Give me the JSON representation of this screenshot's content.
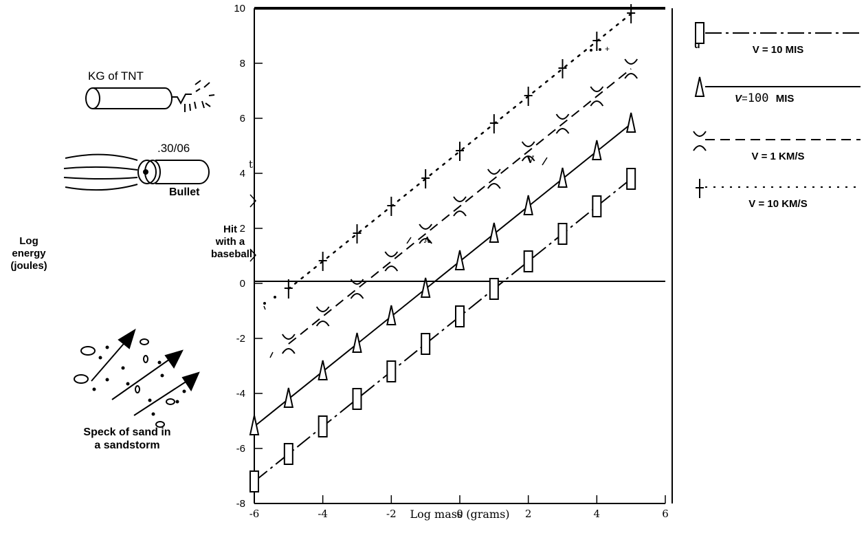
{
  "chart_data": {
    "type": "line",
    "xlabel": "Log mass (grams)",
    "ylabel": "Log energy (joules)",
    "xlim": [
      -6,
      6
    ],
    "ylim": [
      -8,
      10
    ],
    "x_ticks": [
      -6,
      -4,
      -2,
      0,
      2,
      4,
      6
    ],
    "y_ticks": [
      10,
      8,
      6,
      4,
      2,
      0,
      -2,
      -4,
      -6,
      -8
    ],
    "grid": false,
    "legend_position": "right",
    "series": [
      {
        "name": "V = 10 MIS",
        "marker": "square",
        "line": "dash-dot",
        "x": [
          -6,
          -5,
          -4,
          -3,
          -2,
          -1,
          0,
          1,
          2,
          3,
          4,
          5
        ],
        "y": [
          -7.2,
          -6.2,
          -5.2,
          -4.2,
          -3.2,
          -2.2,
          -1.2,
          -0.2,
          0.8,
          1.8,
          2.8,
          3.8
        ]
      },
      {
        "name": "V = 100 MIS",
        "marker": "triangle",
        "line": "solid",
        "x": [
          -6,
          -5,
          -4,
          -3,
          -2,
          -1,
          0,
          1,
          2,
          3,
          4,
          5
        ],
        "y": [
          -5.2,
          -4.2,
          -3.2,
          -2.2,
          -1.2,
          -0.2,
          0.8,
          1.8,
          2.8,
          3.8,
          4.8,
          5.8
        ]
      },
      {
        "name": "V = 1 KM/S",
        "marker": "x",
        "line": "dashed",
        "x": [
          -5,
          -4,
          -3,
          -2,
          -1,
          0,
          1,
          2,
          3,
          4,
          5
        ],
        "y": [
          -2.2,
          -1.2,
          -0.2,
          0.8,
          1.8,
          2.8,
          3.8,
          4.8,
          5.8,
          6.8,
          7.8
        ]
      },
      {
        "name": "V = 10 KM/S",
        "marker": "plus",
        "line": "dotted",
        "x": [
          -5,
          -4,
          -3,
          -2,
          -1,
          0,
          1,
          2,
          3,
          4,
          5
        ],
        "y": [
          -0.2,
          0.8,
          1.8,
          2.8,
          3.8,
          4.8,
          5.8,
          6.8,
          7.8,
          8.8,
          9.8
        ]
      }
    ]
  },
  "annotations": {
    "tnt": "KG of TNT",
    "bullet_caliber": ".30/06",
    "bullet": "Bullet",
    "baseball": "Hit\nwith a\nbaseball",
    "y_axis_label": "Log\nenergy\n(joules)",
    "sand": "Speck of sand in\na sandstorm"
  },
  "legend": {
    "u_mark": "u",
    "items": [
      {
        "label": "V = 10 MIS"
      },
      {
        "label_v": "V",
        "label_eq": "=",
        "label_num": "100",
        "label_unit": "MIS"
      },
      {
        "label": "V = 1 KM/S"
      },
      {
        "label": "V = 10 KM/S"
      }
    ]
  },
  "stray_marks": {
    "t": "t",
    "v": "V",
    "a": "A",
    "plus": "+"
  },
  "colors": {
    "ink": "#000000",
    "background": "#ffffff"
  }
}
